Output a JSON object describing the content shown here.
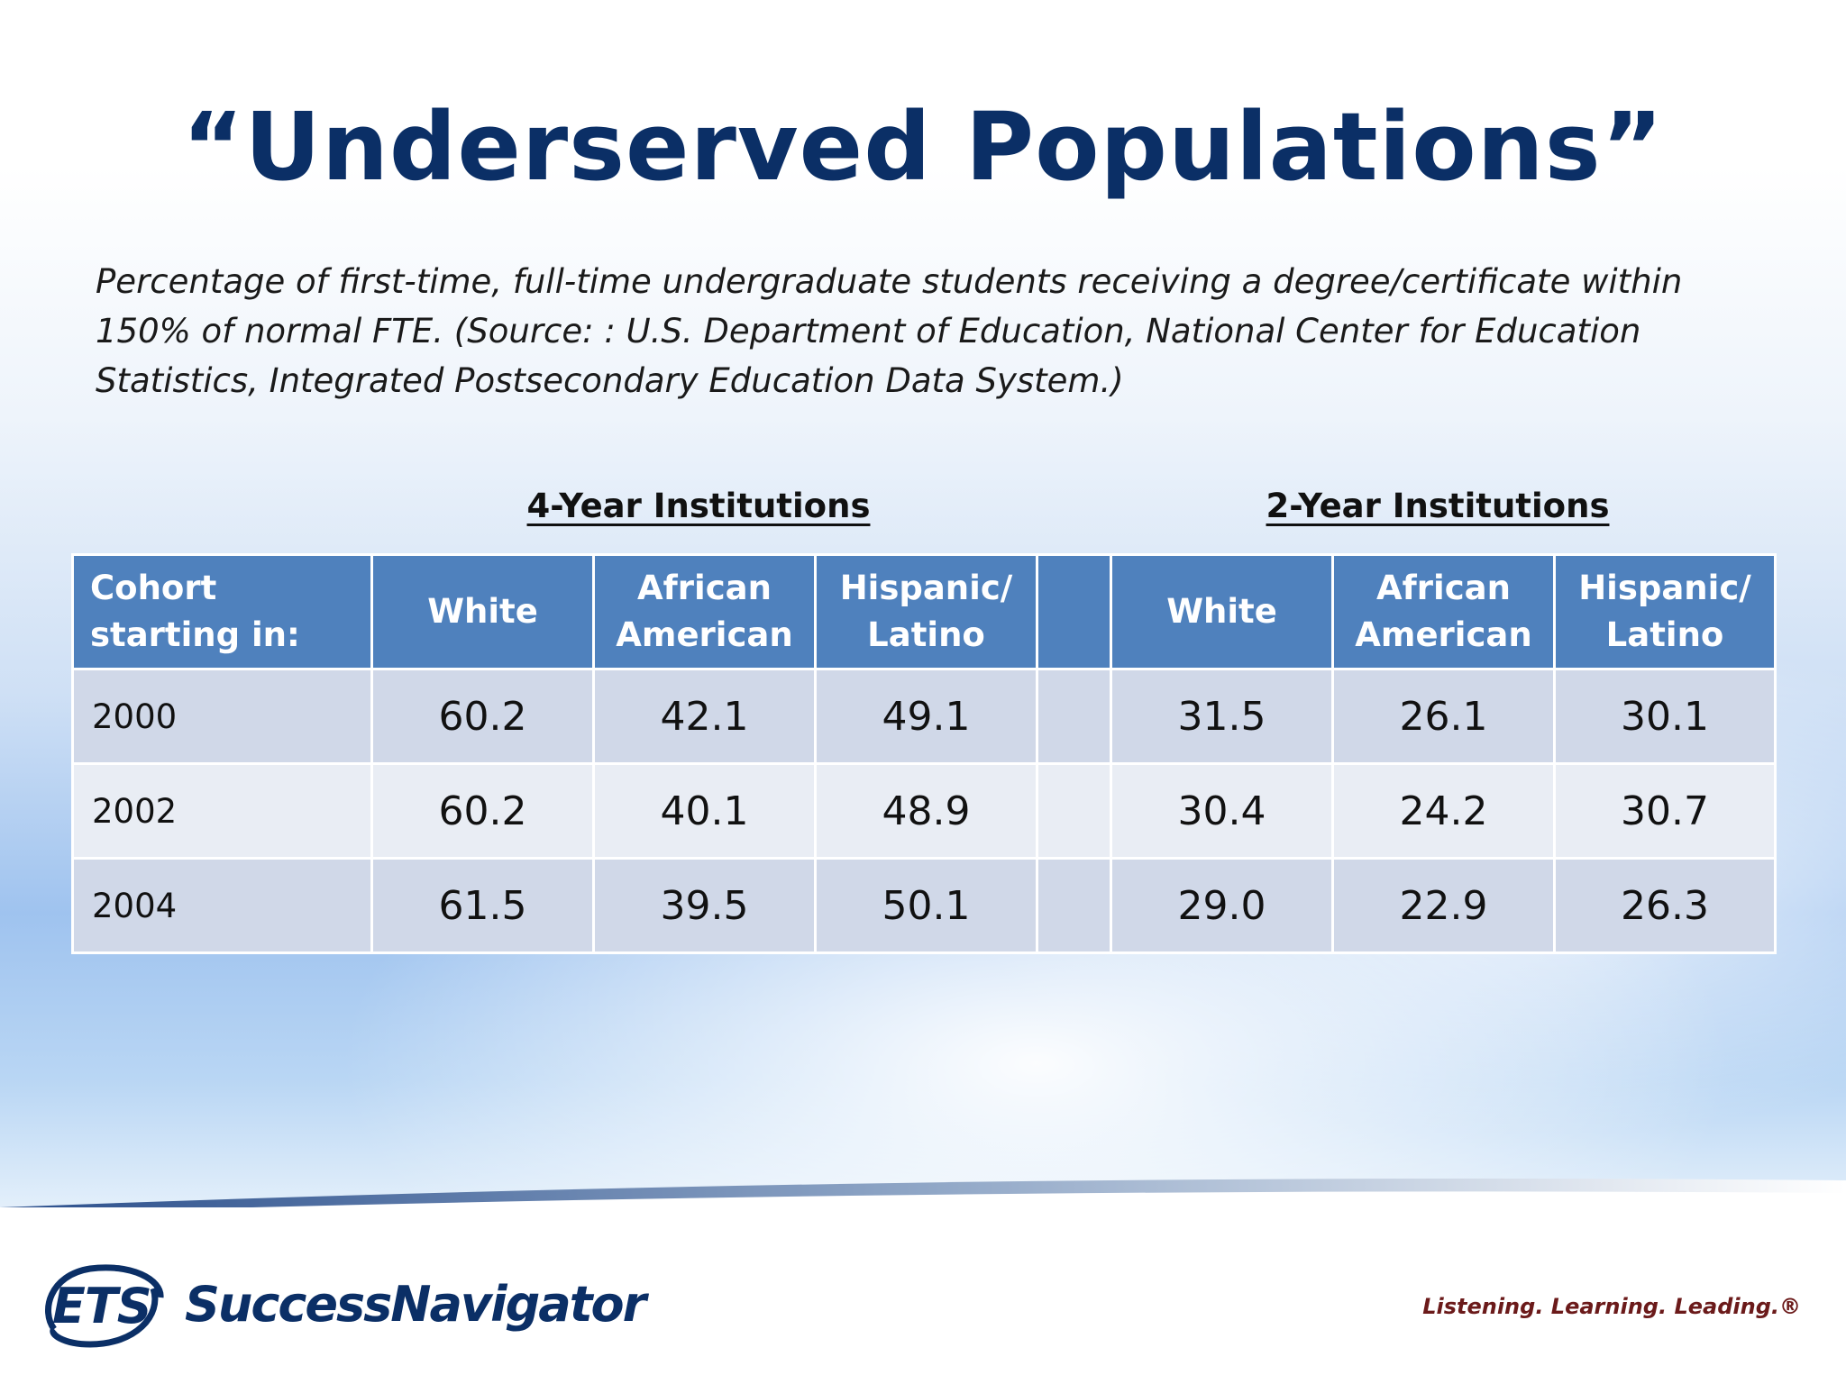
{
  "title": "“Underserved Populations”",
  "subtitle": "Percentage of first-time, full-time undergraduate students receiving a degree/certificate within 150% of normal FTE. (Source: : U.S. Department of Education, National Center for Education Statistics, Integrated Postsecondary Education Data System.)",
  "groups": {
    "four_year": "4-Year Institutions",
    "two_year": "2-Year Institutions"
  },
  "table": {
    "headers": [
      "Cohort starting in:",
      "White",
      "African American",
      "Hispanic/ Latino",
      "",
      "White",
      "African American",
      "Hispanic/ Latino"
    ],
    "rows": [
      [
        "2000",
        "60.2",
        "42.1",
        "49.1",
        "",
        "31.5",
        "26.1",
        "30.1"
      ],
      [
        "2002",
        "60.2",
        "40.1",
        "48.9",
        "",
        "30.4",
        "24.2",
        "30.7"
      ],
      [
        "2004",
        "61.5",
        "39.5",
        "50.1",
        "",
        "29.0",
        "22.9",
        "26.3"
      ]
    ]
  },
  "footer": {
    "logo_mark": "ETS",
    "brand": "SuccessNavigator",
    "tagline": "Listening. Learning. Leading.®"
  },
  "colors": {
    "title": "#0b2f66",
    "header_bg": "#4f81bd",
    "row_odd": "#d0d8e8",
    "row_even": "#e9edf4"
  }
}
